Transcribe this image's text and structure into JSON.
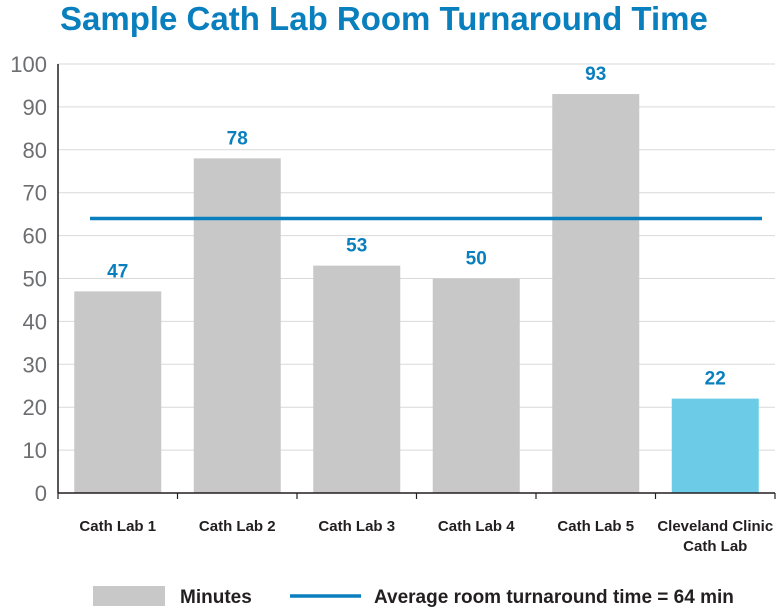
{
  "chart_data": {
    "type": "bar",
    "title": "Sample Cath Lab Room Turnaround Time",
    "categories": [
      "Cath Lab 1",
      "Cath Lab 2",
      "Cath Lab 3",
      "Cath Lab 4",
      "Cath Lab 5",
      "Cleveland Clinic Cath Lab"
    ],
    "category_lines": [
      [
        "Cath Lab 1"
      ],
      [
        "Cath Lab 2"
      ],
      [
        "Cath Lab 3"
      ],
      [
        "Cath Lab 4"
      ],
      [
        "Cath Lab 5"
      ],
      [
        "Cleveland Clinic",
        "Cath Lab"
      ]
    ],
    "series": [
      {
        "name": "Minutes",
        "values": [
          47,
          78,
          53,
          50,
          93,
          22
        ]
      }
    ],
    "data_labels": [
      "47",
      "78",
      "53",
      "50",
      "93",
      "22"
    ],
    "reference_line": {
      "value": 64,
      "label": "Average room turnaround time = 64 min"
    },
    "ylim": [
      0,
      100
    ],
    "yticks": [
      0,
      10,
      20,
      30,
      40,
      50,
      60,
      70,
      80,
      90,
      100
    ],
    "grid": true,
    "legend_position": "bottom",
    "colors": {
      "bar": "#c8c8c9",
      "highlight_bar": "#6ccbe6",
      "reference_line": "#0a7fbe",
      "title": "#0a7fbe",
      "data_label": "#0a7fbe",
      "grid": "#d9d9d9"
    },
    "highlight_index": 5
  }
}
